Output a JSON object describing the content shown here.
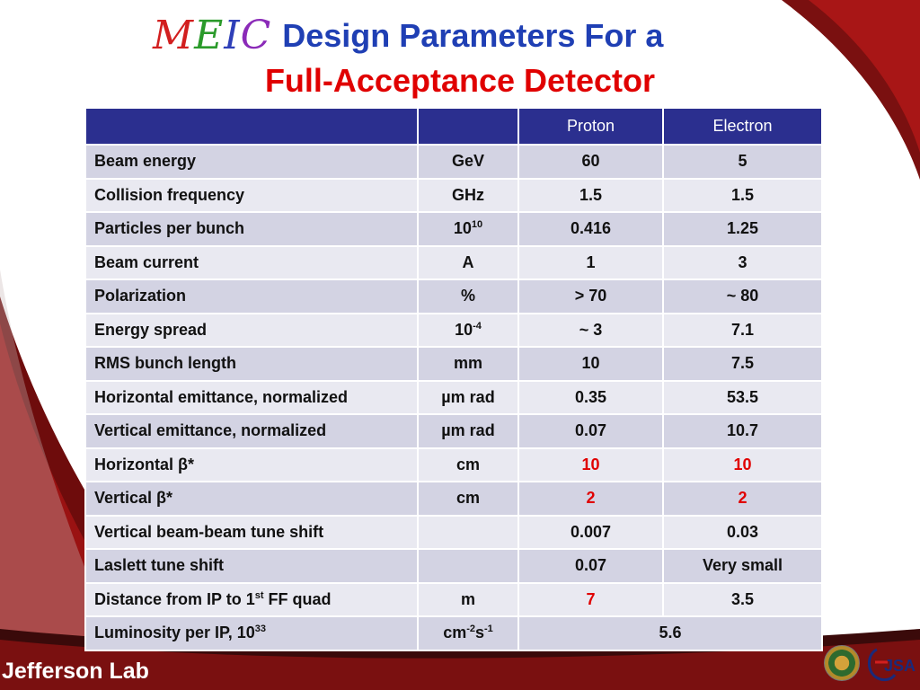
{
  "title": {
    "logo_letters": [
      "M",
      "E",
      "I",
      "C"
    ],
    "logo_colors": [
      "#d21f1f",
      "#2a9a2a",
      "#2e3fb8",
      "#8b2bb8"
    ],
    "line1": "Design Parameters For a",
    "line2": "Full-Acceptance Detector"
  },
  "table": {
    "headers": [
      "",
      "",
      "Proton",
      "Electron"
    ],
    "rows": [
      {
        "name": "Beam energy",
        "unit": "GeV",
        "proton": "60",
        "electron": "5"
      },
      {
        "name": "Collision frequency",
        "unit": "GHz",
        "proton": "1.5",
        "electron": "1.5"
      },
      {
        "name": "Particles per bunch",
        "unit": "10",
        "unit_sup": "10",
        "proton": "0.416",
        "electron": "1.25"
      },
      {
        "name": "Beam current",
        "unit": "A",
        "proton": "1",
        "electron": "3"
      },
      {
        "name": "Polarization",
        "unit": "%",
        "proton": "> 70",
        "electron": "~ 80"
      },
      {
        "name": "Energy spread",
        "unit": "10",
        "unit_sup": "-4",
        "proton": "~ 3",
        "electron": "7.1"
      },
      {
        "name": "RMS bunch length",
        "unit": "mm",
        "proton": "10",
        "electron": "7.5"
      },
      {
        "name": "Horizontal emittance, normalized",
        "unit": "µm rad",
        "proton": "0.35",
        "electron": "53.5"
      },
      {
        "name": "Vertical emittance, normalized",
        "unit": "µm rad",
        "proton": "0.07",
        "electron": "10.7"
      },
      {
        "name": "Horizontal β*",
        "unit": "cm",
        "proton": "10",
        "electron": "10",
        "proton_color": "#e00000",
        "electron_color": "#e00000"
      },
      {
        "name": "Vertical β*",
        "unit": "cm",
        "proton": "2",
        "electron": "2",
        "proton_color": "#e00000",
        "electron_color": "#e00000"
      },
      {
        "name": "Vertical beam-beam tune shift",
        "unit": "",
        "proton": "0.007",
        "electron": "0.03"
      },
      {
        "name": "Laslett tune shift",
        "unit": "",
        "proton": "0.07",
        "electron": "Very small"
      },
      {
        "name_pre": "Distance from IP to 1",
        "name_sup": "st",
        "name_post": " FF quad",
        "unit": "m",
        "proton": "7",
        "electron": "3.5",
        "proton_color": "#e00000"
      },
      {
        "name_pre": "Luminosity per IP, 10",
        "name_sup": "33",
        "unit_parts": [
          "cm",
          "-2",
          "s",
          "-1"
        ],
        "combined": "5.6"
      }
    ]
  },
  "footer": {
    "lab_name": "Jefferson Lab",
    "jsa_text": "JSA",
    "seal_icon": "doe-seal-icon"
  }
}
